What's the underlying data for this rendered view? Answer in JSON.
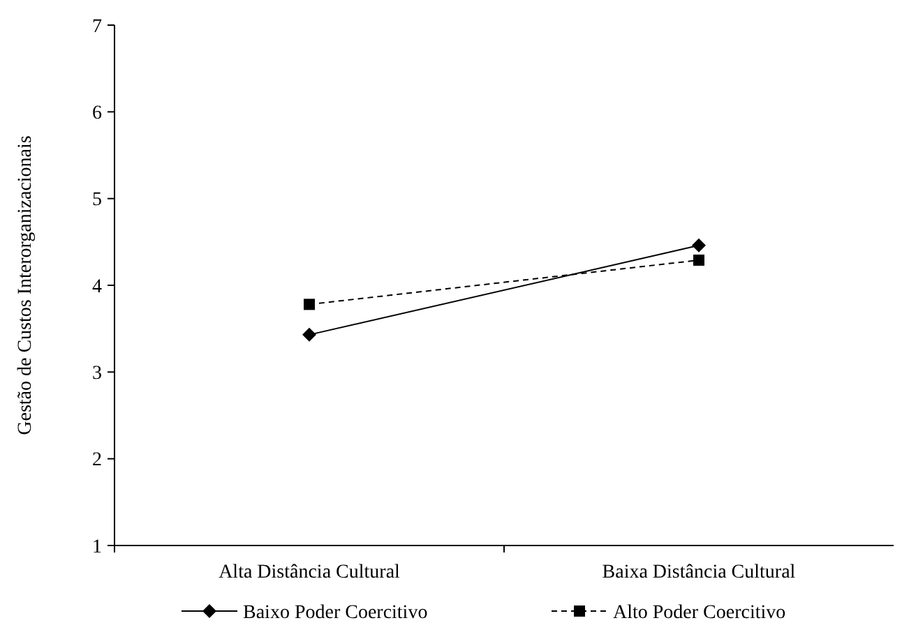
{
  "chart_data": {
    "type": "line",
    "ylabel": "Gestão de Custos Interorganizacionais",
    "categories": [
      "Alta Distância Cultural",
      "Baixa Distância Cultural"
    ],
    "ylim": [
      1,
      7
    ],
    "yticks": [
      1,
      2,
      3,
      4,
      5,
      6,
      7
    ],
    "grid": false,
    "legend": "bottom",
    "series": [
      {
        "name": "Baixo Poder Coercitivo",
        "color": "#000000",
        "values": [
          3.43,
          4.46
        ],
        "marker": "diamond",
        "line_style": "solid"
      },
      {
        "name": "Alto Poder Coercitivo",
        "color": "#000000",
        "values": [
          3.78,
          4.29
        ],
        "marker": "square",
        "line_style": "dashed"
      }
    ]
  }
}
